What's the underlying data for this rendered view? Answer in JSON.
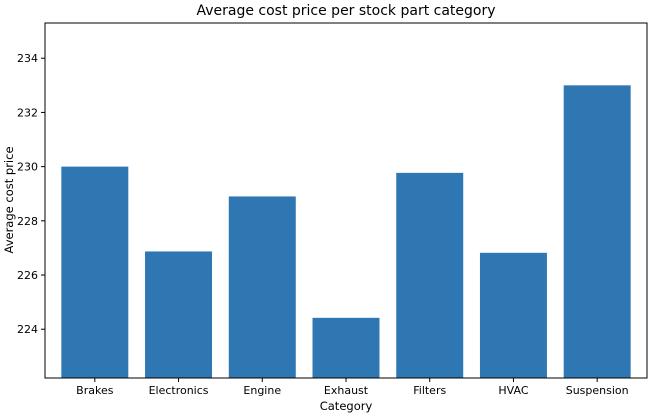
{
  "chart_data": {
    "type": "bar",
    "title": "Average cost price per stock part category",
    "xlabel": "Category",
    "ylabel": "Average cost price",
    "categories": [
      "Brakes",
      "Electronics",
      "Engine",
      "Exhaust",
      "Filters",
      "HVAC",
      "Suspension"
    ],
    "values": [
      230.0,
      226.87,
      228.9,
      224.42,
      229.77,
      226.82,
      233.0
    ],
    "ylim": [
      222.2,
      235.3
    ],
    "yticks": [
      224,
      226,
      228,
      230,
      232,
      234
    ],
    "grid": false,
    "bar_color": "#2e77b2"
  }
}
